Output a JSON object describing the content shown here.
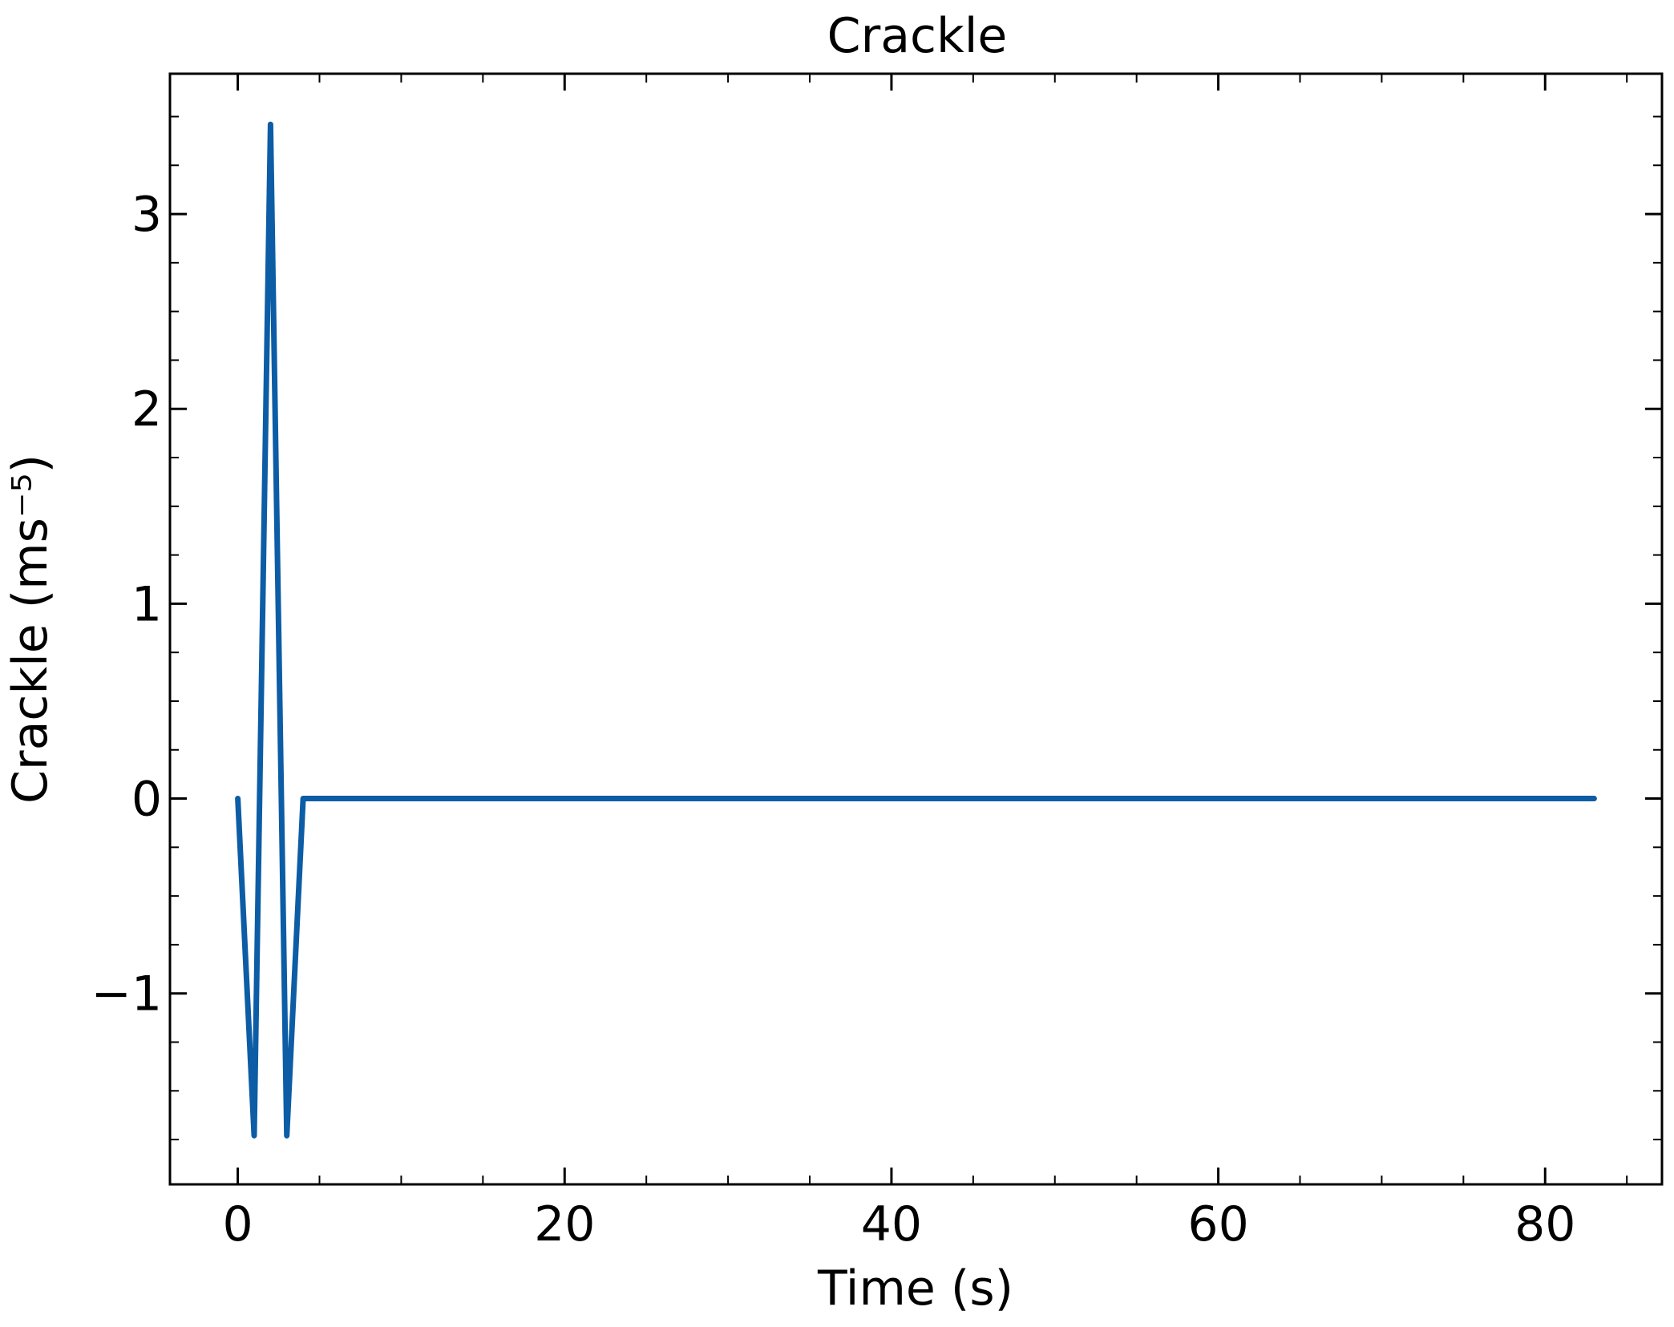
{
  "chart_data": {
    "type": "line",
    "title": "Crackle",
    "xlabel": "Time (s)",
    "ylabel": "Crackle (ms⁻⁵)",
    "xlim": [
      -4.15,
      87.15
    ],
    "ylim": [
      -1.98,
      3.72
    ],
    "x_ticks": [
      0,
      20,
      40,
      60,
      80
    ],
    "x_tick_labels": [
      "0",
      "20",
      "40",
      "60",
      "80"
    ],
    "x_minor_step": 5,
    "y_ticks": [
      -1,
      0,
      1,
      2,
      3
    ],
    "y_tick_labels": [
      "−1",
      "0",
      "1",
      "2",
      "3"
    ],
    "y_minor_step": 0.25,
    "grid": false,
    "colors": {
      "line": "#0c5da5",
      "axes": "#000000"
    },
    "series": [
      {
        "x": [
          0,
          1,
          2,
          3,
          4,
          83
        ],
        "y": [
          0,
          -1.73,
          3.46,
          -1.73,
          0,
          0
        ]
      }
    ]
  }
}
